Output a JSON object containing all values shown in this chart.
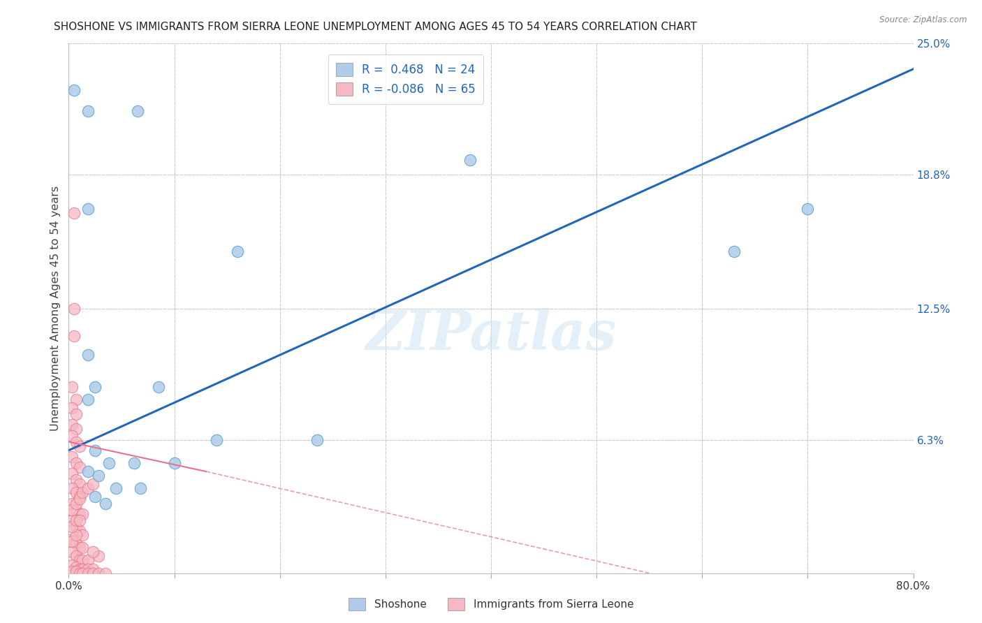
{
  "title": "SHOSHONE VS IMMIGRANTS FROM SIERRA LEONE UNEMPLOYMENT AMONG AGES 45 TO 54 YEARS CORRELATION CHART",
  "source": "Source: ZipAtlas.com",
  "ylabel": "Unemployment Among Ages 45 to 54 years",
  "xlim": [
    0.0,
    0.8
  ],
  "ylim": [
    0.0,
    0.25
  ],
  "xtick_positions": [
    0.0,
    0.1,
    0.2,
    0.3,
    0.4,
    0.5,
    0.6,
    0.7,
    0.8
  ],
  "xtick_labels": [
    "0.0%",
    "",
    "",
    "",
    "",
    "",
    "",
    "",
    "80.0%"
  ],
  "ytick_right_values": [
    0.25,
    0.188,
    0.125,
    0.063,
    0.0
  ],
  "ytick_right_labels": [
    "25.0%",
    "18.8%",
    "12.5%",
    "6.3%",
    ""
  ],
  "shoshone_color": "#aecce8",
  "shoshone_edge_color": "#5a9fd4",
  "sierra_leone_color": "#f5b8c4",
  "sierra_leone_edge_color": "#e8758a",
  "trendline_shoshone_color": "#2266bb",
  "trendline_sierra_leone_color": "#e87090",
  "legend_r_shoshone": "0.468",
  "legend_n_shoshone": "24",
  "legend_r_sierra_leone": "-0.086",
  "legend_n_sierra_leone": "65",
  "watermark_text": "ZIPatlas",
  "shoshone_points": [
    [
      0.005,
      0.228
    ],
    [
      0.018,
      0.218
    ],
    [
      0.065,
      0.218
    ],
    [
      0.38,
      0.195
    ],
    [
      0.018,
      0.172
    ],
    [
      0.16,
      0.152
    ],
    [
      0.7,
      0.172
    ],
    [
      0.63,
      0.152
    ],
    [
      0.018,
      0.103
    ],
    [
      0.025,
      0.088
    ],
    [
      0.018,
      0.082
    ],
    [
      0.085,
      0.088
    ],
    [
      0.14,
      0.063
    ],
    [
      0.235,
      0.063
    ],
    [
      0.025,
      0.058
    ],
    [
      0.038,
      0.052
    ],
    [
      0.062,
      0.052
    ],
    [
      0.1,
      0.052
    ],
    [
      0.018,
      0.048
    ],
    [
      0.028,
      0.046
    ],
    [
      0.045,
      0.04
    ],
    [
      0.068,
      0.04
    ],
    [
      0.025,
      0.036
    ],
    [
      0.035,
      0.033
    ]
  ],
  "sierra_leone_points": [
    [
      0.005,
      0.17
    ],
    [
      0.005,
      0.125
    ],
    [
      0.005,
      0.112
    ],
    [
      0.003,
      0.088
    ],
    [
      0.007,
      0.082
    ],
    [
      0.003,
      0.078
    ],
    [
      0.007,
      0.075
    ],
    [
      0.003,
      0.07
    ],
    [
      0.007,
      0.068
    ],
    [
      0.003,
      0.065
    ],
    [
      0.007,
      0.062
    ],
    [
      0.01,
      0.06
    ],
    [
      0.003,
      0.055
    ],
    [
      0.007,
      0.052
    ],
    [
      0.01,
      0.05
    ],
    [
      0.003,
      0.047
    ],
    [
      0.007,
      0.044
    ],
    [
      0.01,
      0.042
    ],
    [
      0.003,
      0.04
    ],
    [
      0.007,
      0.038
    ],
    [
      0.01,
      0.036
    ],
    [
      0.003,
      0.033
    ],
    [
      0.007,
      0.03
    ],
    [
      0.01,
      0.028
    ],
    [
      0.013,
      0.028
    ],
    [
      0.003,
      0.025
    ],
    [
      0.007,
      0.022
    ],
    [
      0.01,
      0.02
    ],
    [
      0.013,
      0.018
    ],
    [
      0.003,
      0.016
    ],
    [
      0.007,
      0.014
    ],
    [
      0.01,
      0.012
    ],
    [
      0.013,
      0.012
    ],
    [
      0.003,
      0.01
    ],
    [
      0.007,
      0.008
    ],
    [
      0.01,
      0.006
    ],
    [
      0.013,
      0.006
    ],
    [
      0.018,
      0.006
    ],
    [
      0.003,
      0.004
    ],
    [
      0.007,
      0.003
    ],
    [
      0.01,
      0.002
    ],
    [
      0.013,
      0.002
    ],
    [
      0.018,
      0.002
    ],
    [
      0.023,
      0.002
    ],
    [
      0.003,
      0.001
    ],
    [
      0.007,
      0.001
    ],
    [
      0.01,
      0.0
    ],
    [
      0.013,
      0.0
    ],
    [
      0.018,
      0.0
    ],
    [
      0.023,
      0.0
    ],
    [
      0.028,
      0.0
    ],
    [
      0.035,
      0.0
    ],
    [
      0.003,
      0.015
    ],
    [
      0.007,
      0.018
    ],
    [
      0.003,
      0.022
    ],
    [
      0.007,
      0.025
    ],
    [
      0.01,
      0.025
    ],
    [
      0.003,
      0.03
    ],
    [
      0.007,
      0.033
    ],
    [
      0.01,
      0.035
    ],
    [
      0.013,
      0.038
    ],
    [
      0.018,
      0.04
    ],
    [
      0.023,
      0.042
    ],
    [
      0.028,
      0.008
    ],
    [
      0.023,
      0.01
    ]
  ],
  "trendline_shoshone": [
    [
      0.0,
      0.058
    ],
    [
      0.8,
      0.238
    ]
  ],
  "trendline_sierra_leone_solid": [
    [
      0.0,
      0.062
    ],
    [
      0.13,
      0.048
    ]
  ],
  "trendline_sierra_leone_dashed": [
    [
      0.13,
      0.048
    ],
    [
      0.55,
      0.0
    ]
  ],
  "background_color": "#ffffff",
  "grid_color": "#cccccc",
  "title_color": "#222222",
  "right_tick_color": "#2266bb",
  "marker_size": 10
}
